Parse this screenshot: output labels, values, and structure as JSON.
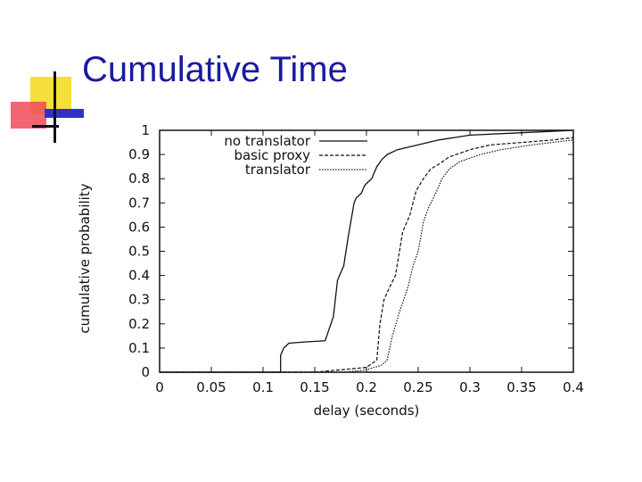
{
  "slide": {
    "title": "Cumulative Time"
  },
  "colors": {
    "title": "#1a1aa0",
    "deco_yellow": "#f5df3a",
    "deco_red": "#f04a5a",
    "deco_blue": "#3030c8",
    "deco_black": "#111111"
  },
  "chart_data": {
    "type": "line",
    "xlabel": "delay (seconds)",
    "ylabel": "cumulative probability",
    "xlim": [
      0,
      0.4
    ],
    "ylim": [
      0,
      1
    ],
    "x_ticks": [
      "0",
      "0.05",
      "0.1",
      "0.15",
      "0.2",
      "0.25",
      "0.3",
      "0.35",
      "0.4"
    ],
    "y_ticks": [
      "0",
      "0.1",
      "0.2",
      "0.3",
      "0.4",
      "0.5",
      "0.6",
      "0.7",
      "0.8",
      "0.9",
      "1"
    ],
    "legend_position": "top-right",
    "series": [
      {
        "name": "no translator",
        "style": "solid",
        "points": [
          [
            0,
            0
          ],
          [
            0.117,
            0
          ],
          [
            0.117,
            0.07
          ],
          [
            0.12,
            0.1
          ],
          [
            0.125,
            0.12
          ],
          [
            0.14,
            0.125
          ],
          [
            0.16,
            0.13
          ],
          [
            0.168,
            0.23
          ],
          [
            0.172,
            0.38
          ],
          [
            0.178,
            0.44
          ],
          [
            0.182,
            0.55
          ],
          [
            0.188,
            0.7
          ],
          [
            0.19,
            0.72
          ],
          [
            0.195,
            0.74
          ],
          [
            0.198,
            0.77
          ],
          [
            0.2,
            0.78
          ],
          [
            0.205,
            0.8
          ],
          [
            0.21,
            0.85
          ],
          [
            0.215,
            0.88
          ],
          [
            0.22,
            0.9
          ],
          [
            0.23,
            0.92
          ],
          [
            0.25,
            0.94
          ],
          [
            0.27,
            0.96
          ],
          [
            0.3,
            0.98
          ],
          [
            0.35,
            0.99
          ],
          [
            0.4,
            1.0
          ]
        ]
      },
      {
        "name": "basic proxy",
        "style": "dashed",
        "points": [
          [
            0,
            0
          ],
          [
            0.15,
            0
          ],
          [
            0.2,
            0.02
          ],
          [
            0.21,
            0.05
          ],
          [
            0.213,
            0.2
          ],
          [
            0.217,
            0.3
          ],
          [
            0.22,
            0.33
          ],
          [
            0.228,
            0.4
          ],
          [
            0.235,
            0.58
          ],
          [
            0.242,
            0.65
          ],
          [
            0.248,
            0.75
          ],
          [
            0.255,
            0.8
          ],
          [
            0.262,
            0.84
          ],
          [
            0.27,
            0.86
          ],
          [
            0.28,
            0.89
          ],
          [
            0.3,
            0.92
          ],
          [
            0.32,
            0.94
          ],
          [
            0.35,
            0.95
          ],
          [
            0.38,
            0.96
          ],
          [
            0.4,
            0.97
          ]
        ]
      },
      {
        "name": "translator",
        "style": "dotted",
        "points": [
          [
            0,
            0
          ],
          [
            0.18,
            0
          ],
          [
            0.2,
            0.01
          ],
          [
            0.215,
            0.03
          ],
          [
            0.22,
            0.05
          ],
          [
            0.225,
            0.15
          ],
          [
            0.232,
            0.25
          ],
          [
            0.24,
            0.35
          ],
          [
            0.245,
            0.44
          ],
          [
            0.25,
            0.5
          ],
          [
            0.255,
            0.62
          ],
          [
            0.26,
            0.68
          ],
          [
            0.268,
            0.75
          ],
          [
            0.273,
            0.8
          ],
          [
            0.28,
            0.84
          ],
          [
            0.29,
            0.87
          ],
          [
            0.31,
            0.9
          ],
          [
            0.33,
            0.92
          ],
          [
            0.36,
            0.94
          ],
          [
            0.4,
            0.96
          ]
        ]
      }
    ]
  }
}
